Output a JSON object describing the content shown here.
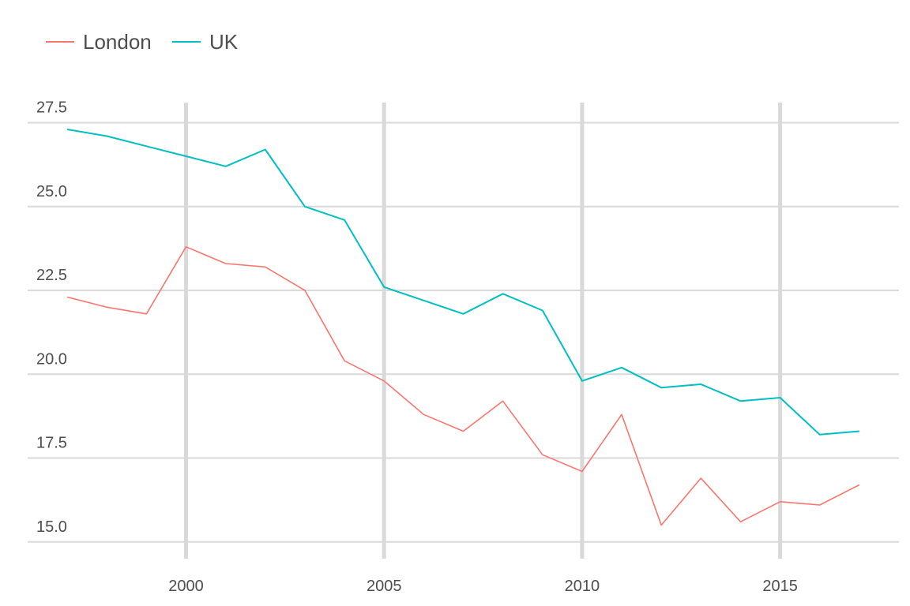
{
  "chart_data": {
    "type": "line",
    "title": "",
    "xlabel": "",
    "ylabel": "",
    "x": [
      1997,
      1998,
      1999,
      2000,
      2001,
      2002,
      2003,
      2004,
      2005,
      2006,
      2007,
      2008,
      2009,
      2010,
      2011,
      2012,
      2013,
      2014,
      2015,
      2016,
      2017
    ],
    "series": [
      {
        "name": "London",
        "color": "#F8766D",
        "values": [
          22.3,
          22.0,
          21.8,
          23.8,
          23.3,
          23.2,
          22.5,
          20.4,
          19.8,
          18.8,
          18.3,
          19.2,
          17.6,
          17.1,
          18.8,
          15.5,
          16.9,
          15.6,
          16.2,
          16.1,
          16.7
        ]
      },
      {
        "name": "UK",
        "color": "#00BFC4",
        "values": [
          27.3,
          27.1,
          26.8,
          26.5,
          26.2,
          26.7,
          25.0,
          24.6,
          22.6,
          22.2,
          21.8,
          22.4,
          21.9,
          19.8,
          20.2,
          19.6,
          19.7,
          19.2,
          19.3,
          18.2,
          18.3
        ]
      }
    ],
    "x_ticks": [
      2000,
      2005,
      2010,
      2015
    ],
    "x_tick_labels": [
      "2000",
      "2005",
      "2010",
      "2015"
    ],
    "y_ticks": [
      15.0,
      17.5,
      20.0,
      22.5,
      25.0,
      27.5
    ],
    "y_tick_labels": [
      "15.0",
      "17.5",
      "20.0",
      "22.5",
      "25.0",
      "27.5"
    ],
    "xlim": [
      1996,
      2018
    ],
    "ylim": [
      14.5,
      28.1
    ],
    "grid": true,
    "legend_position": "top-left"
  }
}
